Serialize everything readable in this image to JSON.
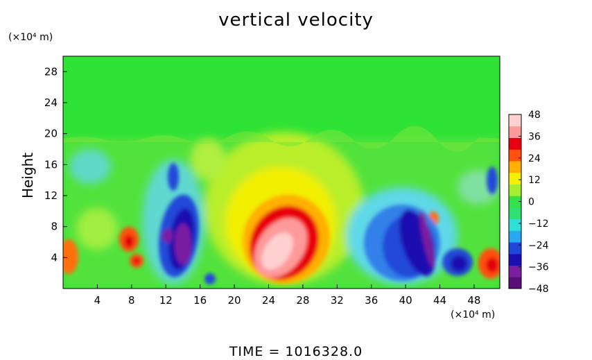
{
  "chart_data": {
    "type": "heatmap",
    "title": "vertical velocity",
    "ylabel": "Height",
    "xunit": "(×10⁴ m)",
    "yunit": "(×10⁴ m)",
    "footer": "TIME  =  1016328.0",
    "xlim": [
      0,
      51
    ],
    "ylim": [
      0,
      30
    ],
    "x_ticks": [
      4,
      8,
      12,
      16,
      20,
      24,
      28,
      32,
      36,
      40,
      44,
      48
    ],
    "y_ticks": [
      4,
      8,
      12,
      16,
      20,
      24,
      28
    ],
    "colorbar": {
      "range": [
        -48,
        48
      ],
      "ticks": [
        48,
        36,
        24,
        12,
        0,
        -12,
        -24,
        -36,
        -48
      ],
      "colors": [
        "#5a0f78",
        "#7a1fa0",
        "#1a10b0",
        "#2048d8",
        "#27a8f0",
        "#30e0d8",
        "#30e070",
        "#34e24a",
        "#a8ee30",
        "#f4f000",
        "#ffb000",
        "#ff5010",
        "#e80010",
        "#ff9a9a",
        "#ffd0d0"
      ]
    },
    "features": [
      {
        "kind": "updraft",
        "x": 25.5,
        "y": 5.5,
        "peak": 48
      },
      {
        "kind": "updraft",
        "x": 8.0,
        "y": 6.0,
        "peak": 36
      },
      {
        "kind": "updraft",
        "x": 9.0,
        "y": 3.5,
        "peak": 30
      },
      {
        "kind": "updraft",
        "x": 50.0,
        "y": 4.5,
        "peak": 36
      },
      {
        "kind": "updraft",
        "x": 0.3,
        "y": 5.0,
        "peak": 32
      },
      {
        "kind": "updraft",
        "x": 43.0,
        "y": 9.5,
        "peak": 26
      },
      {
        "kind": "downdraft",
        "x": 14.0,
        "y": 6.0,
        "peak": -48
      },
      {
        "kind": "downdraft",
        "x": 12.0,
        "y": 7.0,
        "peak": -44
      },
      {
        "kind": "downdraft",
        "x": 41.0,
        "y": 5.5,
        "peak": -48
      },
      {
        "kind": "downdraft",
        "x": 46.0,
        "y": 3.5,
        "peak": -40
      },
      {
        "kind": "downdraft",
        "x": 17.5,
        "y": 1.5,
        "peak": -36
      }
    ]
  }
}
